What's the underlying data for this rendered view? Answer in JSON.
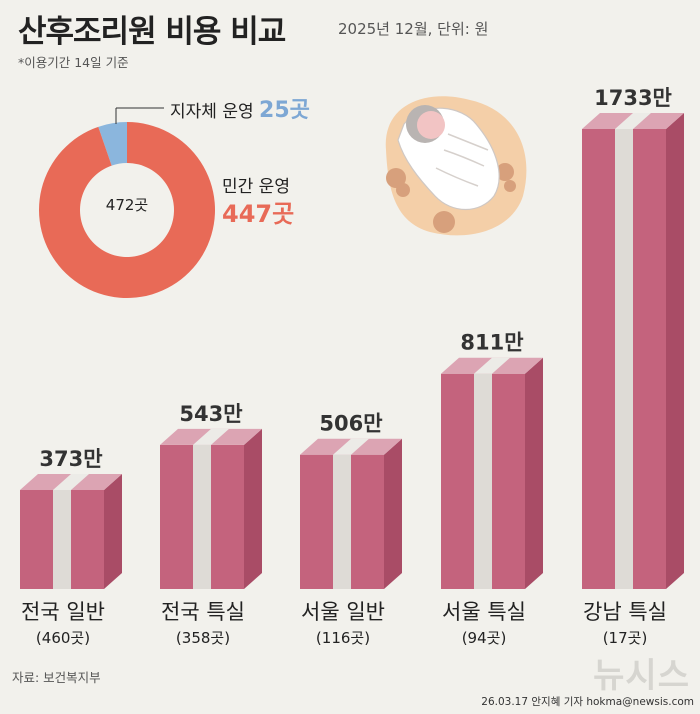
{
  "header": {
    "title": "산후조리원 비용 비교",
    "date_unit": "2025년 12월, 단위: 원",
    "note": "*이용기간 14일 기준"
  },
  "donut": {
    "center_label": "472곳",
    "segments": [
      {
        "name": "지자체 운영",
        "value_label": "25곳",
        "value": 25,
        "color": "#8bb6dd"
      },
      {
        "name": "민간 운영",
        "value_label": "447곳",
        "value": 447,
        "color": "#e86a57"
      }
    ]
  },
  "chart_data": {
    "type": "bar",
    "title": "산후조리원 비용 비교",
    "unit": "원 (만 단위)",
    "categories": [
      "전국 일반",
      "전국 특실",
      "서울 일반",
      "서울 특실",
      "강남 특실"
    ],
    "counts": [
      "(460곳)",
      "(358곳)",
      "(116곳)",
      "(94곳)",
      "(17곳)"
    ],
    "values": [
      373,
      543,
      506,
      811,
      1733
    ],
    "value_labels": [
      "373만",
      "543만",
      "506만",
      "811만",
      "1733만"
    ],
    "ylim": [
      0,
      1733
    ],
    "colors": {
      "front": "#c4637d",
      "side": "#a94c66",
      "top": "#dca4b3",
      "ribbon": "#dedbd6"
    }
  },
  "footer": {
    "source": "자료: 보건복지부",
    "credit": "26.03.17 안지혜 기자 hokma@newsis.com",
    "logo": "뉴시스"
  }
}
